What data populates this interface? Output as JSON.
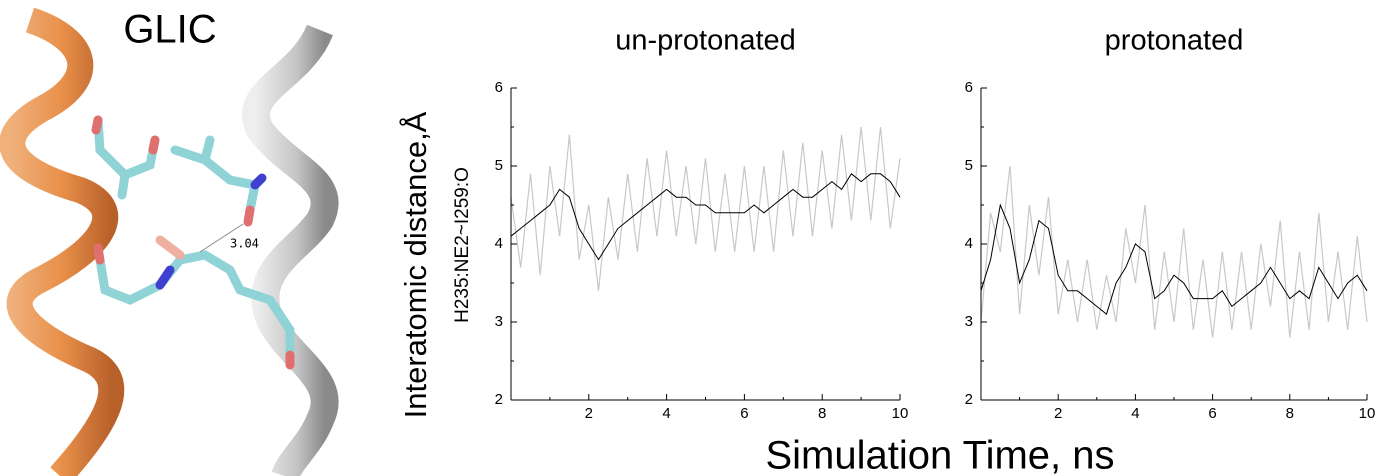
{
  "figure": {
    "panel_label": "GLIC",
    "distance_label": "3.04",
    "ylabel": "Interatomic distance,Å",
    "ylabel_sub": "H235:NE2~I259:O",
    "xlabel": "Simulation Time, ns"
  },
  "chart_data": [
    {
      "type": "line",
      "title": "un-protonated",
      "x": [
        0,
        0.25,
        0.5,
        0.75,
        1,
        1.25,
        1.5,
        1.75,
        2,
        2.25,
        2.5,
        2.75,
        3,
        3.25,
        3.5,
        3.75,
        4,
        4.25,
        4.5,
        4.75,
        5,
        5.25,
        5.5,
        5.75,
        6,
        6.25,
        6.5,
        6.75,
        7,
        7.25,
        7.5,
        7.75,
        8,
        8.25,
        8.5,
        8.75,
        9,
        9.25,
        9.5,
        9.75,
        10
      ],
      "series": [
        {
          "color": "#c8c8c8",
          "values": [
            4.6,
            3.7,
            4.9,
            3.6,
            5.0,
            4.1,
            5.4,
            3.8,
            4.5,
            3.4,
            4.6,
            3.8,
            4.9,
            3.9,
            5.1,
            4.1,
            5.2,
            4.1,
            5.0,
            4.0,
            5.1,
            3.9,
            4.9,
            3.9,
            5.0,
            3.9,
            5.0,
            3.9,
            5.2,
            4.1,
            5.3,
            4.1,
            5.2,
            4.2,
            5.4,
            4.3,
            5.5,
            4.3,
            5.5,
            4.2,
            5.1
          ]
        },
        {
          "color": "#000000",
          "values": [
            4.1,
            4.2,
            4.3,
            4.4,
            4.5,
            4.7,
            4.6,
            4.2,
            4.0,
            3.8,
            4.0,
            4.2,
            4.3,
            4.4,
            4.5,
            4.6,
            4.7,
            4.6,
            4.6,
            4.5,
            4.5,
            4.4,
            4.4,
            4.4,
            4.4,
            4.5,
            4.4,
            4.5,
            4.6,
            4.7,
            4.6,
            4.6,
            4.7,
            4.8,
            4.7,
            4.9,
            4.8,
            4.9,
            4.9,
            4.8,
            4.6
          ]
        }
      ],
      "xlim": [
        0,
        10
      ],
      "xticks": [
        2,
        4,
        6,
        8,
        10
      ],
      "xminor": [
        1,
        3,
        5,
        7,
        9
      ],
      "ylim": [
        2,
        6
      ],
      "yticks": [
        2,
        3,
        4,
        5,
        6
      ],
      "yminor": [
        2.5,
        3.5,
        4.5,
        5.5
      ]
    },
    {
      "type": "line",
      "title": "protonated",
      "x": [
        0,
        0.25,
        0.5,
        0.75,
        1,
        1.25,
        1.5,
        1.75,
        2,
        2.25,
        2.5,
        2.75,
        3,
        3.25,
        3.5,
        3.75,
        4,
        4.25,
        4.5,
        4.75,
        5,
        5.25,
        5.5,
        5.75,
        6,
        6.25,
        6.5,
        6.75,
        7,
        7.25,
        7.5,
        7.75,
        8,
        8.25,
        8.5,
        8.75,
        9,
        9.25,
        9.5,
        9.75,
        10
      ],
      "series": [
        {
          "color": "#c8c8c8",
          "values": [
            3.0,
            4.4,
            3.9,
            5.0,
            3.1,
            4.5,
            3.6,
            4.6,
            3.1,
            3.8,
            3.0,
            3.8,
            2.9,
            3.6,
            3.0,
            4.2,
            3.5,
            4.5,
            2.9,
            3.9,
            3.0,
            4.2,
            2.9,
            3.8,
            2.8,
            3.9,
            2.9,
            3.9,
            2.9,
            4.0,
            3.2,
            4.3,
            2.8,
            3.9,
            2.9,
            4.4,
            3.0,
            3.9,
            2.9,
            4.1,
            3.0
          ]
        },
        {
          "color": "#000000",
          "values": [
            3.4,
            3.8,
            4.5,
            4.2,
            3.5,
            3.8,
            4.3,
            4.2,
            3.6,
            3.4,
            3.4,
            3.3,
            3.2,
            3.1,
            3.5,
            3.7,
            4.0,
            3.9,
            3.3,
            3.4,
            3.6,
            3.5,
            3.3,
            3.3,
            3.3,
            3.4,
            3.2,
            3.3,
            3.4,
            3.5,
            3.7,
            3.5,
            3.3,
            3.4,
            3.3,
            3.7,
            3.5,
            3.3,
            3.5,
            3.6,
            3.4
          ]
        }
      ],
      "xlim": [
        0,
        10
      ],
      "xticks": [
        2,
        4,
        6,
        8,
        10
      ],
      "xminor": [
        1,
        3,
        5,
        7,
        9
      ],
      "ylim": [
        2,
        6
      ],
      "yticks": [
        2,
        3,
        4,
        5,
        6
      ],
      "yminor": [
        2.5,
        3.5,
        4.5,
        5.5
      ]
    }
  ]
}
